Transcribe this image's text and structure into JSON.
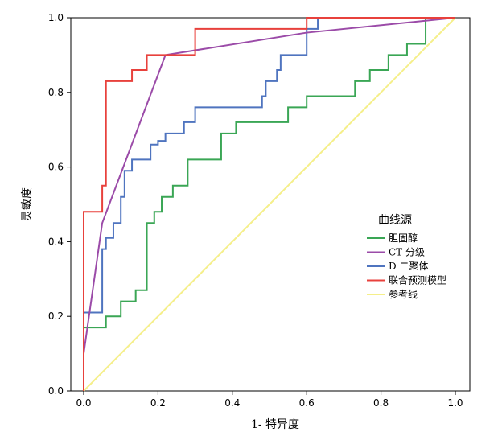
{
  "chart_data": {
    "type": "line",
    "title": "",
    "xlabel": "1- 特异度",
    "ylabel": "灵敏度",
    "xlim": [
      0,
      1
    ],
    "ylim": [
      0,
      1
    ],
    "x_ticks": [
      "0.0",
      "0.2",
      "0.4",
      "0.6",
      "0.8",
      "1.0"
    ],
    "y_ticks": [
      "0.0",
      "0.2",
      "0.4",
      "0.6",
      "0.8",
      "1.0"
    ],
    "grid": false,
    "legend": {
      "title": "曲线源",
      "placement": "right"
    },
    "series": [
      {
        "name": "胆固醇",
        "color": "#3aa655",
        "step": true,
        "points": [
          [
            0,
            0
          ],
          [
            0,
            0.17
          ],
          [
            0.06,
            0.17
          ],
          [
            0.06,
            0.2
          ],
          [
            0.1,
            0.2
          ],
          [
            0.1,
            0.24
          ],
          [
            0.14,
            0.24
          ],
          [
            0.14,
            0.27
          ],
          [
            0.17,
            0.27
          ],
          [
            0.17,
            0.45
          ],
          [
            0.19,
            0.45
          ],
          [
            0.19,
            0.48
          ],
          [
            0.21,
            0.48
          ],
          [
            0.21,
            0.52
          ],
          [
            0.24,
            0.52
          ],
          [
            0.24,
            0.55
          ],
          [
            0.28,
            0.55
          ],
          [
            0.28,
            0.62
          ],
          [
            0.37,
            0.62
          ],
          [
            0.37,
            0.69
          ],
          [
            0.41,
            0.69
          ],
          [
            0.41,
            0.72
          ],
          [
            0.55,
            0.72
          ],
          [
            0.55,
            0.76
          ],
          [
            0.6,
            0.76
          ],
          [
            0.6,
            0.79
          ],
          [
            0.73,
            0.79
          ],
          [
            0.73,
            0.83
          ],
          [
            0.77,
            0.83
          ],
          [
            0.77,
            0.86
          ],
          [
            0.82,
            0.86
          ],
          [
            0.82,
            0.9
          ],
          [
            0.87,
            0.9
          ],
          [
            0.87,
            0.93
          ],
          [
            0.92,
            0.93
          ],
          [
            0.92,
            1.0
          ],
          [
            1,
            1
          ]
        ]
      },
      {
        "name": "CT 分级",
        "color": "#9b4ba8",
        "step": false,
        "points": [
          [
            0,
            0.1
          ],
          [
            0.05,
            0.45
          ],
          [
            0.22,
            0.9
          ],
          [
            0.6,
            0.96
          ],
          [
            1,
            1
          ]
        ]
      },
      {
        "name": "D 二聚体",
        "color": "#4f74bf",
        "step": true,
        "points": [
          [
            0,
            0
          ],
          [
            0,
            0.21
          ],
          [
            0.05,
            0.21
          ],
          [
            0.05,
            0.38
          ],
          [
            0.06,
            0.38
          ],
          [
            0.06,
            0.41
          ],
          [
            0.08,
            0.41
          ],
          [
            0.08,
            0.45
          ],
          [
            0.1,
            0.45
          ],
          [
            0.1,
            0.52
          ],
          [
            0.11,
            0.52
          ],
          [
            0.11,
            0.59
          ],
          [
            0.13,
            0.59
          ],
          [
            0.13,
            0.62
          ],
          [
            0.18,
            0.62
          ],
          [
            0.18,
            0.66
          ],
          [
            0.2,
            0.66
          ],
          [
            0.2,
            0.67
          ],
          [
            0.22,
            0.67
          ],
          [
            0.22,
            0.69
          ],
          [
            0.27,
            0.69
          ],
          [
            0.27,
            0.72
          ],
          [
            0.3,
            0.72
          ],
          [
            0.3,
            0.76
          ],
          [
            0.48,
            0.76
          ],
          [
            0.48,
            0.79
          ],
          [
            0.49,
            0.79
          ],
          [
            0.49,
            0.83
          ],
          [
            0.52,
            0.83
          ],
          [
            0.52,
            0.86
          ],
          [
            0.53,
            0.86
          ],
          [
            0.53,
            0.9
          ],
          [
            0.6,
            0.9
          ],
          [
            0.6,
            0.97
          ],
          [
            0.63,
            0.97
          ],
          [
            0.63,
            1.0
          ],
          [
            1,
            1
          ]
        ]
      },
      {
        "name": "联合预测模型",
        "color": "#e8413c",
        "step": true,
        "points": [
          [
            0,
            0
          ],
          [
            0,
            0.48
          ],
          [
            0.05,
            0.48
          ],
          [
            0.05,
            0.55
          ],
          [
            0.06,
            0.55
          ],
          [
            0.06,
            0.83
          ],
          [
            0.13,
            0.83
          ],
          [
            0.13,
            0.86
          ],
          [
            0.17,
            0.86
          ],
          [
            0.17,
            0.9
          ],
          [
            0.3,
            0.9
          ],
          [
            0.3,
            0.97
          ],
          [
            0.6,
            0.97
          ],
          [
            0.6,
            1.0
          ],
          [
            1,
            1
          ]
        ]
      },
      {
        "name": "参考线",
        "color": "#f5ef8a",
        "step": false,
        "points": [
          [
            0,
            0
          ],
          [
            1,
            1
          ]
        ]
      }
    ]
  }
}
